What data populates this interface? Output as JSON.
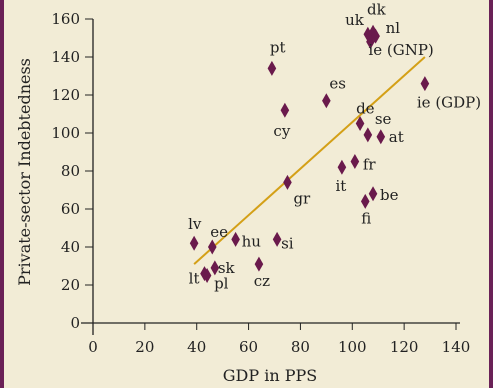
{
  "chart_data": {
    "type": "scatter",
    "xlabel": "GDP in PPS",
    "ylabel": "Private-sector Indebtedness",
    "xlim": [
      0,
      140
    ],
    "ylim": [
      0,
      160
    ],
    "x_ticks": [
      "0",
      "20",
      "40",
      "60",
      "80",
      "100",
      "120",
      "140"
    ],
    "y_ticks": [
      "0",
      "20",
      "40",
      "60",
      "80",
      "100",
      "120",
      "140",
      "160"
    ],
    "grid": false,
    "colors": {
      "marker": "#6a1a4c",
      "trendline": "#d4a017",
      "frame": "#6a2157",
      "background": "#f2ecd6"
    },
    "points": [
      {
        "label": "dk",
        "x": 108,
        "y": 153
      },
      {
        "label": "uk",
        "x": 106,
        "y": 152
      },
      {
        "label": "nl",
        "x": 109,
        "y": 151
      },
      {
        "label": "ie (GNP)",
        "x": 107,
        "y": 148
      },
      {
        "label": "pt",
        "x": 69,
        "y": 134
      },
      {
        "label": "ie (GDP)",
        "x": 128,
        "y": 126
      },
      {
        "label": "es",
        "x": 90,
        "y": 117
      },
      {
        "label": "cy",
        "x": 74,
        "y": 112
      },
      {
        "label": "de",
        "x": 103,
        "y": 105
      },
      {
        "label": "se",
        "x": 106,
        "y": 99
      },
      {
        "label": "at",
        "x": 111,
        "y": 98
      },
      {
        "label": "fr",
        "x": 101,
        "y": 85
      },
      {
        "label": "it",
        "x": 96,
        "y": 82
      },
      {
        "label": "gr",
        "x": 75,
        "y": 74
      },
      {
        "label": "be",
        "x": 108,
        "y": 68
      },
      {
        "label": "fi",
        "x": 105,
        "y": 64
      },
      {
        "label": "si",
        "x": 71,
        "y": 44
      },
      {
        "label": "hu",
        "x": 55,
        "y": 44
      },
      {
        "label": "lv",
        "x": 39,
        "y": 42
      },
      {
        "label": "ee",
        "x": 46,
        "y": 40
      },
      {
        "label": "cz",
        "x": 64,
        "y": 31
      },
      {
        "label": "sk",
        "x": 47,
        "y": 29
      },
      {
        "label": "lt",
        "x": 43,
        "y": 26
      },
      {
        "label": "pl",
        "x": 44,
        "y": 25
      }
    ],
    "trendline": {
      "x": [
        39,
        128
      ],
      "y": [
        31,
        140
      ]
    }
  }
}
